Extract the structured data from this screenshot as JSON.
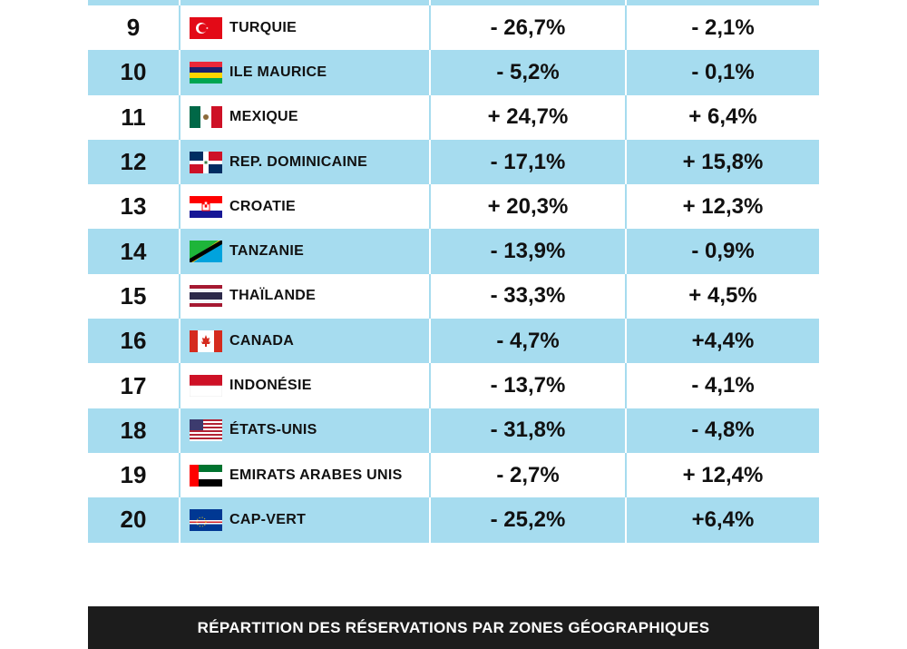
{
  "rows": [
    {
      "rank": "9",
      "country": "TURQUIE",
      "flag": "turkey-flag-icon",
      "change_a": "- 26,7%",
      "change_b": "- 2,1%"
    },
    {
      "rank": "10",
      "country": "ILE MAURICE",
      "flag": "mauritius-flag-icon",
      "change_a": "- 5,2%",
      "change_b": "- 0,1%"
    },
    {
      "rank": "11",
      "country": "MEXIQUE",
      "flag": "mexico-flag-icon",
      "change_a": "+ 24,7%",
      "change_b": "+ 6,4%"
    },
    {
      "rank": "12",
      "country": "REP. DOMINICAINE",
      "flag": "dominican-republic-flag-icon",
      "change_a": "- 17,1%",
      "change_b": "+ 15,8%"
    },
    {
      "rank": "13",
      "country": "CROATIE",
      "flag": "croatia-flag-icon",
      "change_a": "+ 20,3%",
      "change_b": "+ 12,3%"
    },
    {
      "rank": "14",
      "country": "TANZANIE",
      "flag": "tanzania-flag-icon",
      "change_a": "- 13,9%",
      "change_b": "- 0,9%"
    },
    {
      "rank": "15",
      "country": "THAÏLANDE",
      "flag": "thailand-flag-icon",
      "change_a": "- 33,3%",
      "change_b": "+ 4,5%"
    },
    {
      "rank": "16",
      "country": "CANADA",
      "flag": "canada-flag-icon",
      "change_a": "- 4,7%",
      "change_b": "+4,4%"
    },
    {
      "rank": "17",
      "country": "INDONÉSIE",
      "flag": "indonesia-flag-icon",
      "change_a": "- 13,7%",
      "change_b": "- 4,1%"
    },
    {
      "rank": "18",
      "country": "ÉTATS-UNIS",
      "flag": "usa-flag-icon",
      "change_a": "- 31,8%",
      "change_b": "- 4,8%"
    },
    {
      "rank": "19",
      "country": "EMIRATS ARABES UNIS",
      "flag": "uae-flag-icon",
      "change_a": "- 2,7%",
      "change_b": "+ 12,4%"
    },
    {
      "rank": "20",
      "country": "CAP-VERT",
      "flag": "cape-verde-flag-icon",
      "change_a": "- 25,2%",
      "change_b": "+6,4%"
    }
  ],
  "footer": {
    "title": "RÉPARTITION DES RÉSERVATIONS PAR ZONES GÉOGRAPHIQUES"
  },
  "colors": {
    "row_blue": "#a6dcef",
    "footer_bg": "#1c1c1c"
  }
}
